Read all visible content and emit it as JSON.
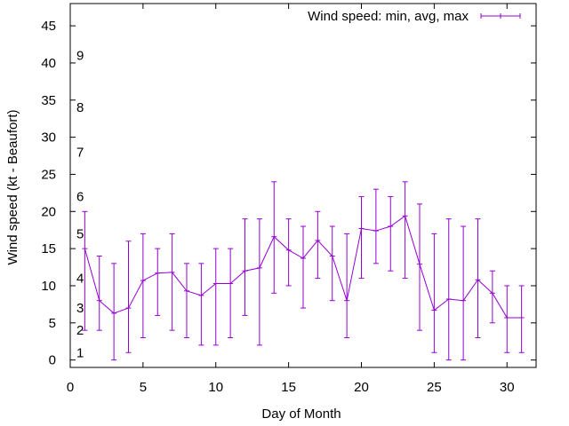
{
  "chart_data": {
    "type": "line",
    "title": "",
    "xlabel": "Day of Month",
    "ylabel": "Wind speed (kt - Beaufort)",
    "xlim": [
      0,
      32
    ],
    "ylim": [
      -1,
      48
    ],
    "x_ticks": [
      0,
      5,
      10,
      15,
      20,
      25,
      30
    ],
    "y_ticks": [
      0,
      5,
      10,
      15,
      20,
      25,
      30,
      35,
      40,
      45
    ],
    "grid": false,
    "legend": {
      "position": "top-right",
      "entries": [
        "Wind speed: min, avg, max"
      ]
    },
    "series": [
      {
        "name": "Wind speed: min, avg, max",
        "color": "#9400d3",
        "x": [
          1,
          2,
          3,
          4,
          5,
          6,
          7,
          8,
          9,
          10,
          11,
          12,
          13,
          14,
          15,
          16,
          17,
          18,
          19,
          20,
          21,
          22,
          23,
          24,
          25,
          26,
          27,
          28,
          29,
          30,
          31
        ],
        "avg": [
          15,
          8,
          6.3,
          7,
          10.7,
          11.7,
          11.8,
          9.3,
          8.7,
          10.3,
          10.3,
          12,
          12.4,
          16.6,
          14.8,
          13.7,
          16.1,
          14,
          8,
          17.7,
          17.4,
          18,
          19.4,
          12.9,
          6.7,
          8.2,
          8,
          10.8,
          9,
          5.7,
          5.7
        ],
        "min": [
          4,
          4,
          0,
          1,
          3,
          6,
          4,
          3,
          2,
          2,
          3,
          6,
          2,
          9,
          10,
          7,
          11,
          8,
          3,
          11,
          13,
          12,
          11,
          4,
          1,
          0,
          0,
          3,
          5,
          1,
          1
        ],
        "max": [
          20,
          14,
          13,
          16,
          17,
          15,
          17,
          13,
          13,
          15,
          15,
          19,
          19,
          24,
          19,
          18,
          20,
          18,
          17,
          22,
          23,
          22,
          24,
          21,
          17,
          19,
          18,
          19,
          12,
          10,
          10
        ]
      }
    ],
    "annotations": [
      {
        "label": "1",
        "y": 1
      },
      {
        "label": "2",
        "y": 4
      },
      {
        "label": "3",
        "y": 7
      },
      {
        "label": "4",
        "y": 11
      },
      {
        "label": "5",
        "y": 17
      },
      {
        "label": "6",
        "y": 22
      },
      {
        "label": "7",
        "y": 28
      },
      {
        "label": "8",
        "y": 34
      },
      {
        "label": "9",
        "y": 41
      }
    ]
  }
}
